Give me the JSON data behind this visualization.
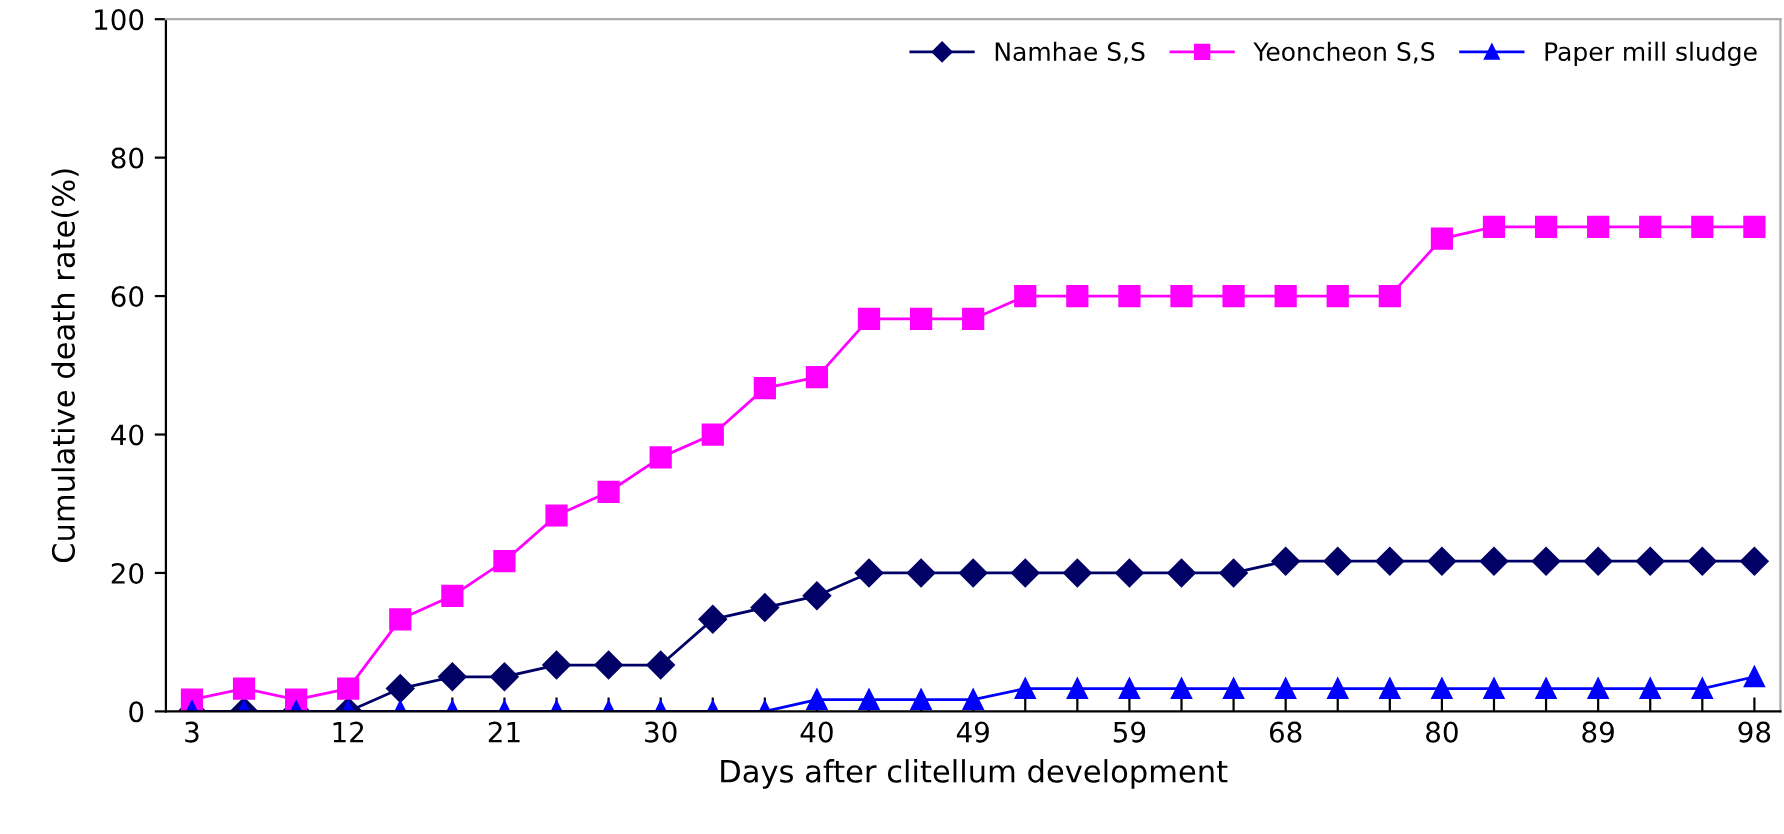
{
  "chart_data": {
    "type": "line",
    "xlabel": "Days after clitellum development",
    "ylabel": "Cumulative death rate(%)",
    "categories": [
      "3",
      null,
      null,
      "12",
      null,
      null,
      "21",
      null,
      null,
      "30",
      null,
      null,
      "40",
      null,
      null,
      "49",
      null,
      null,
      "59",
      null,
      null,
      "68",
      null,
      null,
      "80",
      null,
      null,
      "89",
      null,
      null,
      "98"
    ],
    "series": [
      {
        "name": "Namhae S,S",
        "color": "#000066",
        "marker": "diamond",
        "values": [
          0,
          0,
          0,
          0,
          3.3,
          5,
          5,
          6.7,
          6.7,
          6.7,
          13.3,
          15,
          16.7,
          20,
          20,
          20,
          20,
          20,
          20,
          20,
          20,
          21.7,
          21.7,
          21.7,
          21.7,
          21.7,
          21.7,
          21.7,
          21.7,
          21.7,
          21.7
        ]
      },
      {
        "name": "Yeoncheon S,S",
        "color": "#ff00ff",
        "marker": "square",
        "values": [
          1.7,
          3.3,
          1.7,
          3.3,
          13.3,
          16.7,
          21.7,
          28.3,
          31.7,
          36.7,
          40,
          46.7,
          48.3,
          56.7,
          56.7,
          56.7,
          60,
          60,
          60,
          60,
          60,
          60,
          60,
          60,
          68.3,
          70,
          70,
          70,
          70,
          70,
          70
        ]
      },
      {
        "name": "Paper mill sludge",
        "color": "#0000ff",
        "marker": "triangle",
        "values": [
          0,
          0,
          0,
          0,
          0,
          0,
          0,
          0,
          0,
          0,
          0,
          0,
          1.7,
          1.7,
          1.7,
          1.7,
          3.3,
          3.3,
          3.3,
          3.3,
          3.3,
          3.3,
          3.3,
          3.3,
          3.3,
          3.3,
          3.3,
          3.3,
          3.3,
          3.3,
          5
        ]
      }
    ],
    "ylim": [
      0,
      100
    ],
    "yticks": [
      0,
      20,
      40,
      60,
      80,
      100
    ],
    "grid": false,
    "legend": "top right",
    "line_style": "solid"
  }
}
